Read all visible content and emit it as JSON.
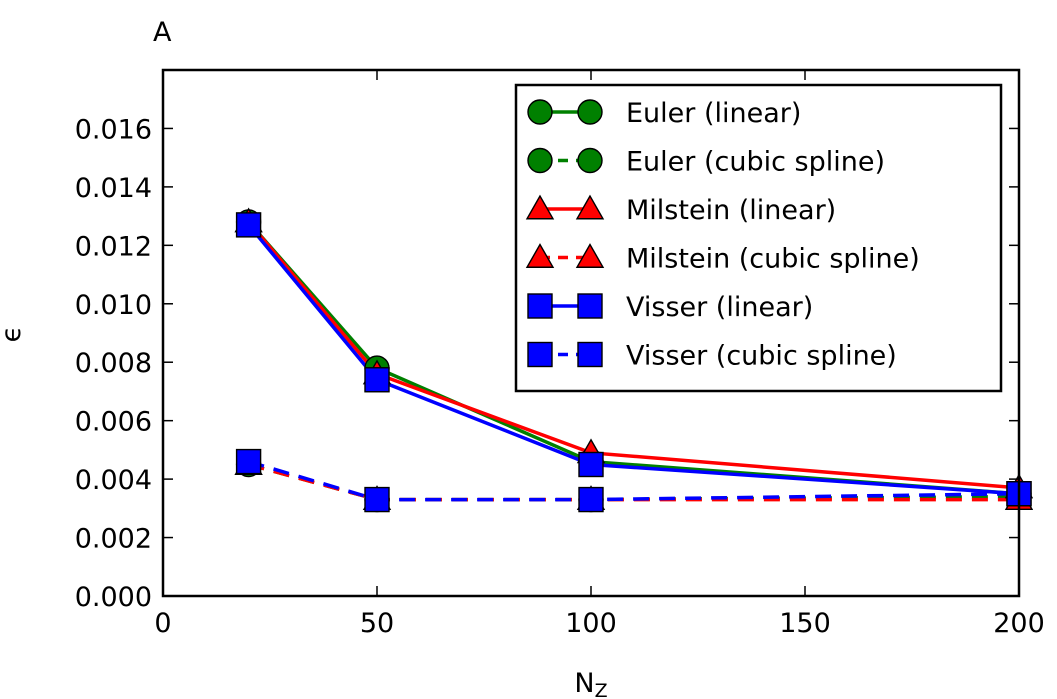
{
  "chart_data": {
    "type": "line",
    "panel_label": "A",
    "title": "",
    "xlabel": "N",
    "xlabel_sub": "Z",
    "ylabel": "ϵ",
    "xlim": [
      0,
      200
    ],
    "ylim": [
      0.0,
      0.018
    ],
    "xticks": [
      0,
      50,
      100,
      150,
      200
    ],
    "xtick_labels": [
      "0",
      "50",
      "100",
      "150",
      "200"
    ],
    "yticks": [
      0.0,
      0.002,
      0.004,
      0.006,
      0.008,
      0.01,
      0.012,
      0.014,
      0.016
    ],
    "ytick_labels": [
      "0.000",
      "0.002",
      "0.004",
      "0.006",
      "0.008",
      "0.010",
      "0.012",
      "0.014",
      "0.016"
    ],
    "grid": false,
    "legend_position": "upper right",
    "x": [
      20,
      50,
      100,
      200
    ],
    "series": [
      {
        "name": "Euler (linear)",
        "color": "#008000",
        "marker": "circle",
        "dash": "solid",
        "values": [
          0.0128,
          0.0078,
          0.0046,
          0.0035
        ]
      },
      {
        "name": "Euler (cubic spline)",
        "color": "#008000",
        "marker": "circle",
        "dash": "dashed",
        "values": [
          0.0045,
          0.0033,
          0.0033,
          0.0034
        ]
      },
      {
        "name": "Milstein (linear)",
        "color": "#ff0000",
        "marker": "triangle",
        "dash": "solid",
        "values": [
          0.0128,
          0.0076,
          0.0049,
          0.0037
        ]
      },
      {
        "name": "Milstein (cubic spline)",
        "color": "#ff0000",
        "marker": "triangle",
        "dash": "dashed",
        "values": [
          0.0045,
          0.0033,
          0.0033,
          0.0033
        ]
      },
      {
        "name": "Visser (linear)",
        "color": "#0000ff",
        "marker": "square",
        "dash": "solid",
        "values": [
          0.0127,
          0.0074,
          0.0045,
          0.0035
        ]
      },
      {
        "name": "Visser (cubic spline)",
        "color": "#0000ff",
        "marker": "square",
        "dash": "dashed",
        "values": [
          0.0046,
          0.0033,
          0.0033,
          0.0035
        ]
      }
    ]
  }
}
